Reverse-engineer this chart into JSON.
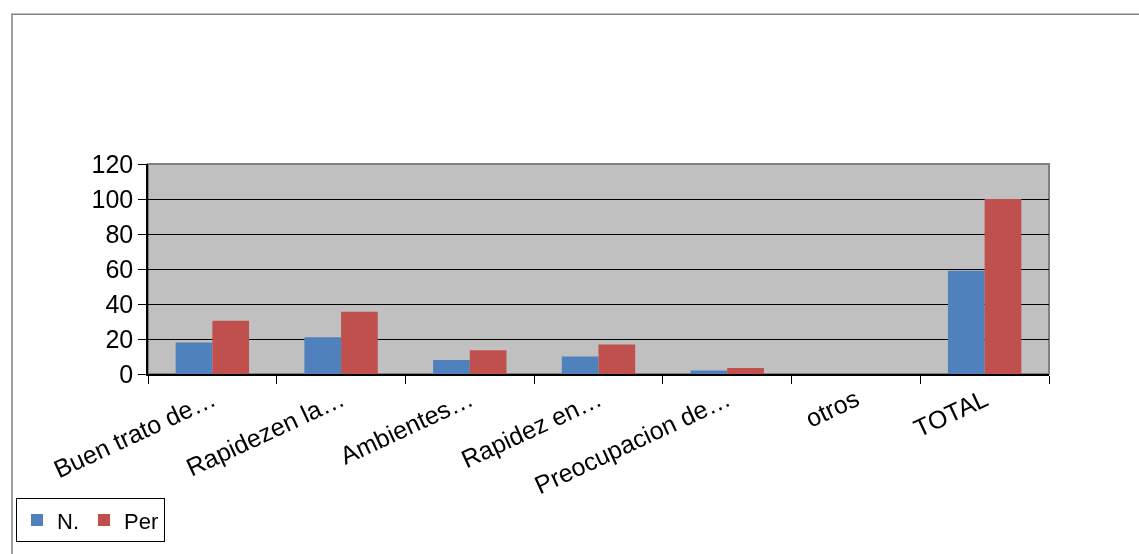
{
  "chart_data": {
    "type": "bar",
    "categories": [
      "Buen trato de…",
      "Rapidezen la…",
      "Ambientes…",
      "Rapidez en…",
      "Preocupacion de…",
      "otros",
      "TOTAL"
    ],
    "series": [
      {
        "name": "N.",
        "color": "#4f81bd",
        "values": [
          18,
          21,
          8,
          10,
          2,
          0,
          59
        ]
      },
      {
        "name": "Per",
        "color": "#c0504d",
        "values": [
          30.5,
          35.6,
          13.6,
          16.9,
          3.4,
          0,
          100
        ]
      }
    ],
    "ylim": [
      0,
      120
    ],
    "yticks": [
      0,
      20,
      40,
      60,
      80,
      100,
      120
    ],
    "grid": "y",
    "legend": "bottom left"
  }
}
